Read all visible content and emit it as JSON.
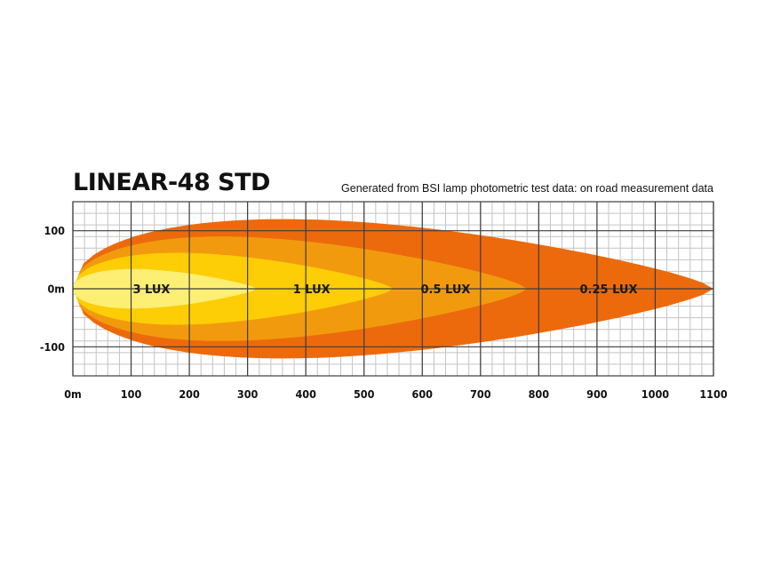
{
  "chart_data": {
    "type": "area",
    "title": "LINEAR-48 STD",
    "subtitle": "Generated from BSI lamp photometric test data: on road measurement data",
    "x_ticks": [
      "0m",
      "100",
      "200",
      "300",
      "400",
      "500",
      "600",
      "700",
      "800",
      "900",
      "1000",
      "1100"
    ],
    "y_ticks": [
      {
        "label": "100",
        "value": 100
      },
      {
        "label": "0m",
        "value": 0
      },
      {
        "label": "-100",
        "value": -100
      }
    ],
    "xlim": [
      0,
      1100
    ],
    "ylim": [
      -150,
      150
    ],
    "grid": true,
    "zones": [
      {
        "name": "0.25 LUX",
        "color": "#EC6A0C",
        "reach": 1100,
        "half_width": 120,
        "label_x": 920
      },
      {
        "name": "0.5 LUX",
        "color": "#F29A0E",
        "reach": 780,
        "half_width": 90,
        "label_x": 640
      },
      {
        "name": "1 LUX",
        "color": "#FDCD06",
        "reach": 550,
        "half_width": 62,
        "label_x": 410
      },
      {
        "name": "3 LUX",
        "color": "#FDEF73",
        "reach": 315,
        "half_width": 34,
        "label_x": 135
      }
    ]
  }
}
